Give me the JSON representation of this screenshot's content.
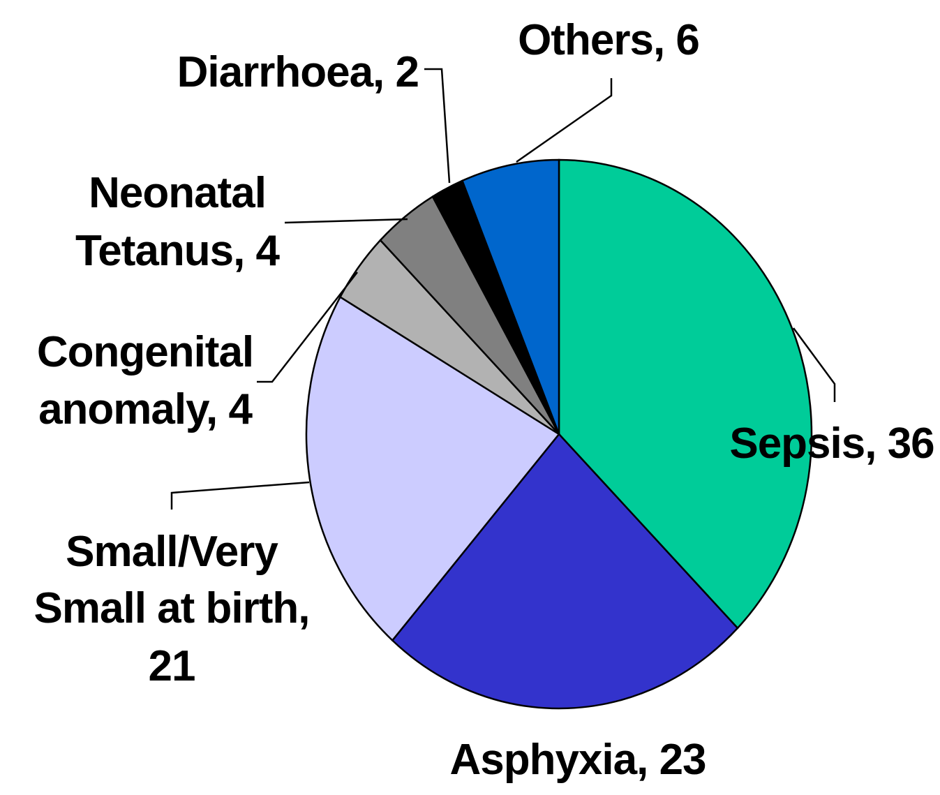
{
  "chart_data": {
    "type": "pie",
    "title": "",
    "slices": [
      {
        "category": "Sepsis",
        "value": 36,
        "label": "Sepsis, 36",
        "color": "#00CC99"
      },
      {
        "category": "Asphyxia",
        "value": 23,
        "label": "Asphyxia, 23",
        "color": "#3333CC"
      },
      {
        "category": "Small/Very Small at birth",
        "value": 21,
        "label_lines": [
          "Small/Very",
          "Small at birth,",
          "21"
        ],
        "color": "#CCCCFF"
      },
      {
        "category": "Congenital anomaly",
        "value": 4,
        "label_lines": [
          "Congenital",
          "anomaly, 4"
        ],
        "color": "#B2B2B2"
      },
      {
        "category": "Neonatal Tetanus",
        "value": 4,
        "label_lines": [
          "Neonatal",
          "Tetanus, 4"
        ],
        "color": "#808080"
      },
      {
        "category": "Diarrhoea",
        "value": 2,
        "label": "Diarrhoea, 2",
        "color": "#000000"
      },
      {
        "category": "Others",
        "value": 6,
        "label": "Others, 6",
        "color": "#0066CC"
      }
    ],
    "start_angle_deg": 0,
    "direction": "clockwise",
    "legend": "none",
    "data_labels": "outside with leader lines"
  }
}
